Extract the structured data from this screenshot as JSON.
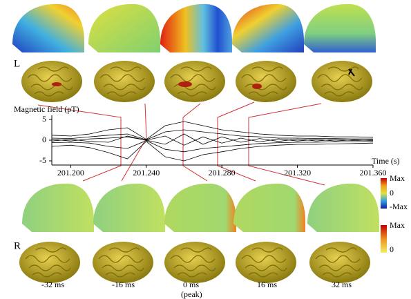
{
  "figure": {
    "side_labels": [
      "L",
      "R"
    ],
    "time_labels": [
      "-32 ms",
      "-16 ms",
      "0 ms",
      "16 ms",
      "32 ms"
    ],
    "peak_label": "(peak)",
    "colorbar_1": {
      "max": "Max",
      "zero": "0",
      "min": "-Max"
    },
    "colorbar_2": {
      "max": "Max",
      "zero": "0"
    }
  },
  "chart_data": {
    "type": "line",
    "y_label": "Magnetic field (pT)",
    "x_label": "Time (s)",
    "x": [
      201.19,
      201.2,
      201.21,
      201.22,
      201.23,
      201.24,
      201.25,
      201.26,
      201.27,
      201.28,
      201.29,
      201.3,
      201.31,
      201.32,
      201.33,
      201.34,
      201.35,
      201.36
    ],
    "series": [
      {
        "color": "#000000",
        "values": [
          1.2,
          1.0,
          1.5,
          2.5,
          3.0,
          0.2,
          3.5,
          4.5,
          3.5,
          2.5,
          2.0,
          1.5,
          1.2,
          1.0,
          1.0,
          0.8,
          0.8,
          0.7
        ]
      },
      {
        "color": "#000000",
        "values": [
          -1.5,
          -1.2,
          -1.8,
          -3.0,
          -4.5,
          -0.3,
          -4.0,
          -5.0,
          -3.5,
          -2.8,
          -2.0,
          -1.5,
          -1.2,
          -1.0,
          -1.0,
          -0.9,
          -0.8,
          -0.7
        ]
      },
      {
        "color": "#000000",
        "values": [
          0.5,
          0.4,
          0.8,
          1.2,
          1.5,
          0.1,
          2.0,
          2.5,
          2.0,
          1.5,
          1.0,
          0.8,
          0.5,
          0.5,
          0.4,
          0.4,
          0.3,
          0.3
        ]
      },
      {
        "color": "#000000",
        "values": [
          -0.6,
          -0.5,
          -0.7,
          -1.5,
          -2.0,
          -0.1,
          -2.2,
          -2.8,
          -2.0,
          -1.6,
          -1.2,
          -0.8,
          -0.6,
          -0.5,
          -0.5,
          -0.4,
          -0.4,
          -0.3
        ]
      },
      {
        "color": "#000000",
        "values": [
          0.2,
          -0.2,
          0.3,
          0.5,
          0.8,
          0.0,
          1.0,
          -1.2,
          0.8,
          -0.7,
          0.5,
          -0.4,
          0.3,
          -0.2,
          0.2,
          -0.2,
          0.1,
          -0.1
        ]
      },
      {
        "color": "#000000",
        "values": [
          -0.2,
          0.2,
          -0.3,
          -0.5,
          1.0,
          0.0,
          -1.0,
          1.5,
          -1.0,
          0.8,
          -0.5,
          0.4,
          -0.3,
          0.3,
          -0.2,
          0.2,
          -0.1,
          0.1
        ]
      }
    ],
    "xlim": [
      201.19,
      201.36
    ],
    "xticks": [
      {
        "value": 201.2,
        "label": "201.200"
      },
      {
        "value": 201.24,
        "label": "201.240"
      },
      {
        "value": 201.28,
        "label": "201.280"
      },
      {
        "value": 201.32,
        "label": "201.320"
      },
      {
        "value": 201.36,
        "label": "201.360"
      }
    ],
    "ylim": [
      -6,
      6
    ],
    "yticks": [
      -5,
      0,
      5
    ]
  }
}
